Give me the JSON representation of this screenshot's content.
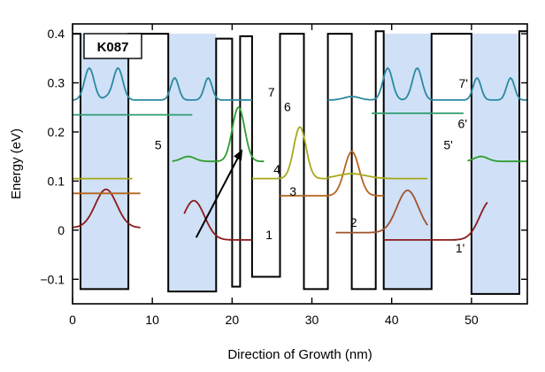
{
  "chart_data": {
    "type": "line",
    "title": "",
    "sample_tag": "K087",
    "xlabel": "Direction of Growth (nm)",
    "ylabel": "Energy (eV)",
    "xlim": [
      0,
      57
    ],
    "ylim": [
      -0.15,
      0.42
    ],
    "x_ticks": [
      0,
      10,
      20,
      30,
      40,
      50
    ],
    "x_tick_labels": [
      "0",
      "10",
      "20",
      "30",
      "40",
      "50"
    ],
    "y_ticks": [
      -0.1,
      0,
      0.1,
      0.2,
      0.3,
      0.4
    ],
    "y_tick_labels": [
      "−0.1",
      "0",
      "0.1",
      "0.2",
      "0.3",
      "0.4"
    ],
    "grid": false,
    "colors": {
      "band": "#000000",
      "well_fill": "#cfe0f7",
      "arrow": "#000000"
    },
    "conduction_band_profile": {
      "x": [
        0,
        1,
        1,
        7,
        7,
        12,
        12,
        18,
        18,
        20,
        20,
        21,
        21,
        22.5,
        22.5,
        26,
        26,
        29,
        29,
        32,
        32,
        35,
        35,
        38,
        38,
        39,
        39,
        45,
        45,
        50,
        50,
        56,
        56,
        57
      ],
      "y": [
        0.4,
        0.4,
        -0.12,
        -0.12,
        0.4,
        0.4,
        -0.125,
        -0.125,
        0.39,
        0.39,
        -0.115,
        -0.115,
        0.395,
        0.395,
        -0.095,
        -0.095,
        0.4,
        0.4,
        -0.12,
        -0.12,
        0.4,
        0.4,
        -0.12,
        -0.12,
        0.405,
        0.405,
        -0.12,
        -0.12,
        0.4,
        0.4,
        -0.13,
        -0.13,
        0.405,
        0.405
      ]
    },
    "shaded_wells": [
      [
        1,
        7
      ],
      [
        12,
        18
      ],
      [
        39,
        45
      ],
      [
        50,
        56
      ]
    ],
    "states": [
      {
        "label": "1",
        "color": "#8b1a1a",
        "energy": -0.02,
        "x_range": [
          14,
          22.5
        ],
        "peaks": [
          {
            "center": 15.2,
            "amp": 0.08,
            "width": 1.9
          }
        ]
      },
      {
        "label": "1'",
        "color": "#8b1a1a",
        "energy": -0.02,
        "x_range": [
          39,
          52
        ],
        "peaks": [
          {
            "center": 52.4,
            "amp": 0.08,
            "width": 1.9
          }
        ]
      },
      {
        "label": "1-left",
        "color": "#8b1a1a",
        "energy": 0.005,
        "x_range": [
          0,
          8.5
        ],
        "peaks": [
          {
            "center": 4.2,
            "amp": 0.078,
            "width": 1.9
          }
        ]
      },
      {
        "label": "2",
        "color": "#a0522d",
        "energy": -0.005,
        "x_range": [
          33,
          44.5
        ],
        "peaks": [
          {
            "center": 42,
            "amp": 0.086,
            "width": 1.9
          }
        ]
      },
      {
        "label": "3",
        "color": "#b5651d",
        "energy": 0.07,
        "x_range": [
          26,
          39
        ],
        "peaks": [
          {
            "center": 35,
            "amp": 0.09,
            "width": 1.3
          }
        ]
      },
      {
        "label": "3-left",
        "color": "#b5651d",
        "energy": 0.075,
        "x_range": [
          0,
          8.5
        ],
        "peaks": []
      },
      {
        "label": "4",
        "color": "#a8a81a",
        "energy": 0.105,
        "x_range": [
          22.5,
          32
        ],
        "peaks": [
          {
            "center": 28.5,
            "amp": 0.105,
            "width": 1.1
          }
        ]
      },
      {
        "label": "4-right",
        "color": "#a8a81a",
        "energy": 0.105,
        "x_range": [
          32,
          44.5
        ],
        "peaks": [
          {
            "center": 35,
            "amp": 0.01,
            "width": 2.5
          }
        ]
      },
      {
        "label": "4-left",
        "color": "#a8a81a",
        "energy": 0.105,
        "x_range": [
          0,
          7.5
        ],
        "peaks": []
      },
      {
        "label": "5",
        "color": "#2e9e2e",
        "energy": 0.14,
        "x_range": [
          12.5,
          24
        ],
        "peaks": [
          {
            "center": 14.5,
            "amp": 0.01,
            "width": 1.2
          },
          {
            "center": 20.8,
            "amp": 0.11,
            "width": 1.1
          }
        ]
      },
      {
        "label": "5'",
        "color": "#2e9e2e",
        "energy": 0.14,
        "x_range": [
          49.5,
          57
        ],
        "peaks": [
          {
            "center": 51.2,
            "amp": 0.01,
            "width": 1.2
          }
        ]
      },
      {
        "label": "6",
        "color": "#2e9e6e",
        "energy": 0.235,
        "x_range": [
          0,
          15
        ],
        "peaks": []
      },
      {
        "label": "6'",
        "color": "#2e9e6e",
        "energy": 0.238,
        "x_range": [
          37.5,
          49
        ],
        "peaks": []
      },
      {
        "label": "7",
        "color": "#2a8aa0",
        "energy": 0.265,
        "x_range": [
          0,
          22.5
        ],
        "peaks": [
          {
            "center": 2.1,
            "amp": 0.065,
            "width": 0.85
          },
          {
            "center": 4.3,
            "amp": 0.005,
            "width": 0.7
          },
          {
            "center": 5.7,
            "amp": 0.065,
            "width": 0.85
          },
          {
            "center": 12.8,
            "amp": 0.045,
            "width": 0.7
          },
          {
            "center": 17,
            "amp": 0.045,
            "width": 0.7
          }
        ]
      },
      {
        "label": "7'",
        "color": "#2a8aa0",
        "energy": 0.265,
        "x_range": [
          32,
          57
        ],
        "peaks": [
          {
            "center": 35,
            "amp": 0.007,
            "width": 1.4
          },
          {
            "center": 39.5,
            "amp": 0.065,
            "width": 0.85
          },
          {
            "center": 43.2,
            "amp": 0.065,
            "width": 0.85
          },
          {
            "center": 50.7,
            "amp": 0.045,
            "width": 0.7
          },
          {
            "center": 54.9,
            "amp": 0.045,
            "width": 0.7
          }
        ]
      }
    ],
    "annotations": [
      {
        "text": "1",
        "x": 24.2,
        "y": -0.018
      },
      {
        "text": "1'",
        "x": 48.0,
        "y": -0.045
      },
      {
        "text": "2",
        "x": 34.8,
        "y": 0.007
      },
      {
        "text": "3",
        "x": 27.2,
        "y": 0.07
      },
      {
        "text": "4",
        "x": 25.2,
        "y": 0.115
      },
      {
        "text": "5",
        "x": 10.3,
        "y": 0.165
      },
      {
        "text": "5'",
        "x": 46.5,
        "y": 0.165
      },
      {
        "text": "6",
        "x": 26.5,
        "y": 0.242
      },
      {
        "text": "6'",
        "x": 48.3,
        "y": 0.208
      },
      {
        "text": "7",
        "x": 24.5,
        "y": 0.272
      },
      {
        "text": "7'",
        "x": 48.4,
        "y": 0.29
      }
    ],
    "arrow": {
      "from": [
        15.5,
        -0.015
      ],
      "to": [
        21.3,
        0.165
      ]
    }
  }
}
